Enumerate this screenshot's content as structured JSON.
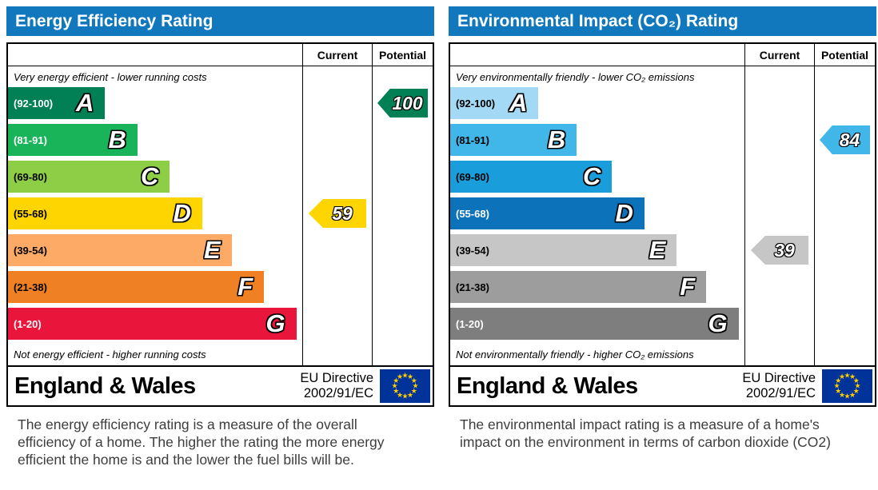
{
  "page": {
    "background": "#ffffff"
  },
  "charts": [
    {
      "title": "Energy Efficiency Rating",
      "header_color": "#1278be",
      "columns": {
        "current": "Current",
        "potential": "Potential"
      },
      "top_caption": "Very energy efficient - lower running costs",
      "bottom_caption": "Not energy efficient - higher running costs",
      "bands": [
        {
          "letter": "A",
          "range": "(92-100)",
          "color": "#008054",
          "text_color": "#ffffff",
          "width_pct": 33
        },
        {
          "letter": "B",
          "range": "(81-91)",
          "color": "#19b459",
          "text_color": "#ffffff",
          "width_pct": 44
        },
        {
          "letter": "C",
          "range": "(69-80)",
          "color": "#8dce46",
          "text_color": "#000000",
          "width_pct": 55
        },
        {
          "letter": "D",
          "range": "(55-68)",
          "color": "#ffd500",
          "text_color": "#000000",
          "width_pct": 66
        },
        {
          "letter": "E",
          "range": "(39-54)",
          "color": "#fcaa65",
          "text_color": "#000000",
          "width_pct": 76
        },
        {
          "letter": "F",
          "range": "(21-38)",
          "color": "#ef8023",
          "text_color": "#000000",
          "width_pct": 87
        },
        {
          "letter": "G",
          "range": "(1-20)",
          "color": "#e9153b",
          "text_color": "#ffffff",
          "width_pct": 98
        }
      ],
      "current": {
        "value": 59,
        "band": "D",
        "color": "#ffd500"
      },
      "potential": {
        "value": 100,
        "band": "A",
        "color": "#008054"
      },
      "footer": {
        "region": "England & Wales",
        "directive_line1": "EU Directive",
        "directive_line2": "2002/91/EC"
      },
      "description": "The energy efficiency rating is a measure of the overall efficiency of a home.  The higher the rating the more energy efficient the home is and the lower the fuel bills will be."
    },
    {
      "title": "Environmental Impact (CO₂) Rating",
      "header_color": "#1278be",
      "columns": {
        "current": "Current",
        "potential": "Potential"
      },
      "top_caption": "Very environmentally friendly - lower CO₂ emissions",
      "bottom_caption": "Not environmentally friendly - higher CO₂ emissions",
      "bands": [
        {
          "letter": "A",
          "range": "(92-100)",
          "color": "#a3d9f4",
          "text_color": "#000000",
          "width_pct": 30
        },
        {
          "letter": "B",
          "range": "(81-91)",
          "color": "#41b6e8",
          "text_color": "#000000",
          "width_pct": 43
        },
        {
          "letter": "C",
          "range": "(69-80)",
          "color": "#1a9ddb",
          "text_color": "#000000",
          "width_pct": 55
        },
        {
          "letter": "D",
          "range": "(55-68)",
          "color": "#0c72ba",
          "text_color": "#ffffff",
          "width_pct": 66
        },
        {
          "letter": "E",
          "range": "(39-54)",
          "color": "#c6c6c6",
          "text_color": "#000000",
          "width_pct": 77
        },
        {
          "letter": "F",
          "range": "(21-38)",
          "color": "#9d9d9d",
          "text_color": "#000000",
          "width_pct": 87
        },
        {
          "letter": "G",
          "range": "(1-20)",
          "color": "#7e7e7e",
          "text_color": "#ffffff",
          "width_pct": 98
        }
      ],
      "current": {
        "value": 39,
        "band": "E",
        "color": "#c6c6c6"
      },
      "potential": {
        "value": 84,
        "band": "B",
        "color": "#41b6e8"
      },
      "footer": {
        "region": "England & Wales",
        "directive_line1": "EU Directive",
        "directive_line2": "2002/91/EC"
      },
      "description": "The environmental impact rating is a measure of a home's impact on the environment in terms of carbon dioxide (CO2)"
    }
  ],
  "chart_data": [
    {
      "type": "bar",
      "title": "Energy Efficiency Rating",
      "categories": [
        "A",
        "B",
        "C",
        "D",
        "E",
        "F",
        "G"
      ],
      "band_ranges": [
        "92-100",
        "81-91",
        "69-80",
        "55-68",
        "39-54",
        "21-38",
        "1-20"
      ],
      "series": [
        {
          "name": "Current",
          "value": 59,
          "band": "D"
        },
        {
          "name": "Potential",
          "value": 100,
          "band": "A"
        }
      ],
      "top_label": "Very energy efficient - lower running costs",
      "bottom_label": "Not energy efficient - higher running costs",
      "footer": "England & Wales — EU Directive 2002/91/EC",
      "value_range": [
        1,
        100
      ]
    },
    {
      "type": "bar",
      "title": "Environmental Impact (CO₂) Rating",
      "categories": [
        "A",
        "B",
        "C",
        "D",
        "E",
        "F",
        "G"
      ],
      "band_ranges": [
        "92-100",
        "81-91",
        "69-80",
        "55-68",
        "39-54",
        "21-38",
        "1-20"
      ],
      "series": [
        {
          "name": "Current",
          "value": 39,
          "band": "E"
        },
        {
          "name": "Potential",
          "value": 84,
          "band": "B"
        }
      ],
      "top_label": "Very environmentally friendly - lower CO₂ emissions",
      "bottom_label": "Not environmentally friendly - higher CO₂ emissions",
      "footer": "England & Wales — EU Directive 2002/91/EC",
      "value_range": [
        1,
        100
      ]
    }
  ]
}
